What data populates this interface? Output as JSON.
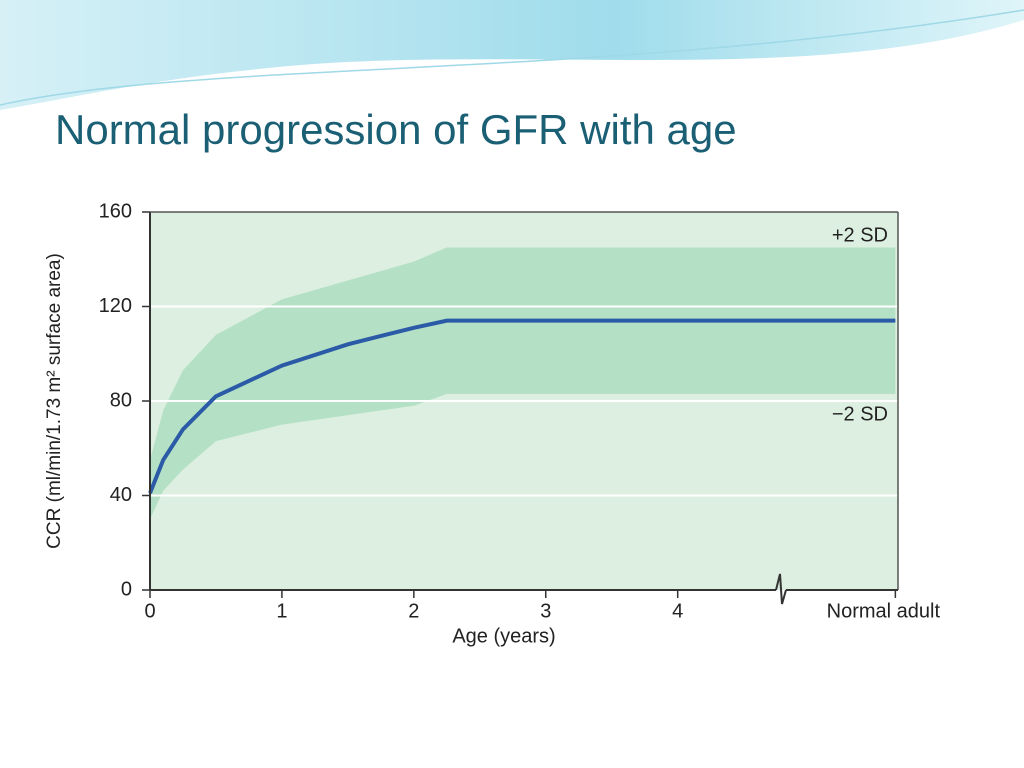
{
  "chart_data": {
    "type": "band-line",
    "title": "Normal progression of GFR with age",
    "xlabel": "Age (years)",
    "ylabel": "CCR (ml/min/1.73 m² surface area)",
    "x": [
      0,
      0.1,
      0.25,
      0.5,
      1,
      1.5,
      2,
      2.25,
      5.65
    ],
    "series": [
      {
        "color": "#2b5aa6",
        "values": [
          41,
          55,
          68,
          82,
          95,
          104,
          111,
          114,
          114
        ]
      }
    ],
    "band": {
      "color": "#b4e0c5",
      "upper": [
        55,
        76,
        93,
        108,
        123,
        131,
        139,
        145,
        145
      ],
      "lower": [
        30,
        42,
        51,
        63,
        70,
        74,
        78,
        83,
        83
      ]
    },
    "annotations": [
      "+2 SD",
      "−2 SD"
    ],
    "xlim": [
      0,
      5.67
    ],
    "xticks": [
      0,
      1,
      2,
      3,
      4,
      {
        "value": 5.65,
        "label": "Normal adult"
      }
    ],
    "ylim": [
      0,
      160
    ],
    "yticks": [
      0,
      40,
      80,
      120,
      160
    ],
    "grid": true
  }
}
